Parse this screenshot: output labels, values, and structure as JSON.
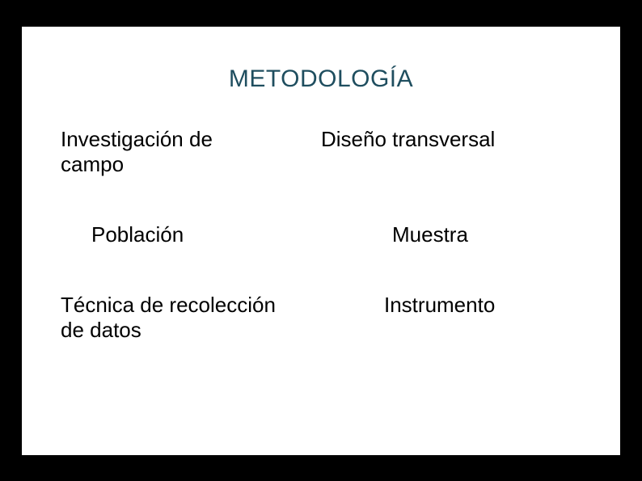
{
  "slide": {
    "title": "METODOLOGÍA",
    "title_color": "#1f4e5f",
    "title_fontsize": 30,
    "background_color": "#ffffff",
    "outer_background": "#000000",
    "text_color": "#000000",
    "body_fontsize": 26,
    "rows": [
      {
        "left": "Investigación de campo",
        "right": "Diseño transversal"
      },
      {
        "left": "Población",
        "right": "Muestra"
      },
      {
        "left": "Técnica de recolección de datos",
        "right": "Instrumento"
      }
    ]
  }
}
